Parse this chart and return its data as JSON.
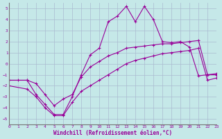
{
  "bg_color": "#c5e8e8",
  "grid_color": "#aabbd0",
  "line_color": "#990099",
  "xlabel": "Windchill (Refroidissement éolien,°C)",
  "xlim": [
    0,
    23
  ],
  "ylim": [
    -5.5,
    5.5
  ],
  "xticks": [
    0,
    1,
    2,
    3,
    4,
    5,
    6,
    7,
    8,
    9,
    10,
    11,
    12,
    13,
    14,
    15,
    16,
    17,
    18,
    19,
    20,
    21,
    22,
    23
  ],
  "yticks": [
    -5,
    -4,
    -3,
    -2,
    -1,
    0,
    1,
    2,
    3,
    4,
    5
  ],
  "curve1_x": [
    0,
    1,
    2,
    3,
    4,
    5,
    6,
    7,
    8,
    9,
    10,
    11,
    12,
    13,
    14,
    15,
    16,
    17,
    18,
    19,
    20,
    21,
    22,
    23
  ],
  "curve1_y": [
    -1.5,
    -1.5,
    -1.5,
    -2.8,
    -3.7,
    -4.6,
    -4.6,
    -3.0,
    -1.0,
    0.8,
    1.4,
    3.8,
    4.3,
    5.2,
    3.8,
    5.2,
    4.0,
    2.0,
    1.9,
    2.0,
    1.5,
    -1.1,
    -1.0,
    -1.0
  ],
  "curve2_x": [
    0,
    2,
    3,
    4,
    5,
    6,
    7,
    8,
    9,
    10,
    11,
    12,
    13,
    14,
    15,
    16,
    17,
    18,
    19,
    20,
    21,
    22,
    23
  ],
  "curve2_y": [
    -1.5,
    -1.5,
    -1.8,
    -2.8,
    -3.8,
    -3.2,
    -2.8,
    -1.2,
    -0.3,
    0.2,
    0.7,
    1.0,
    1.4,
    1.5,
    1.6,
    1.7,
    1.8,
    1.8,
    1.9,
    2.0,
    2.1,
    -1.0,
    -0.9
  ],
  "curve3_x": [
    0,
    2,
    3,
    4,
    5,
    6,
    7,
    8,
    9,
    10,
    11,
    12,
    13,
    14,
    15,
    16,
    17,
    18,
    19,
    20,
    21,
    22,
    23
  ],
  "curve3_y": [
    -2.0,
    -2.3,
    -3.0,
    -4.0,
    -4.7,
    -4.7,
    -3.5,
    -2.5,
    -2.0,
    -1.5,
    -1.0,
    -0.5,
    0.0,
    0.3,
    0.5,
    0.7,
    0.9,
    1.0,
    1.1,
    1.2,
    1.4,
    -1.5,
    -1.3
  ]
}
